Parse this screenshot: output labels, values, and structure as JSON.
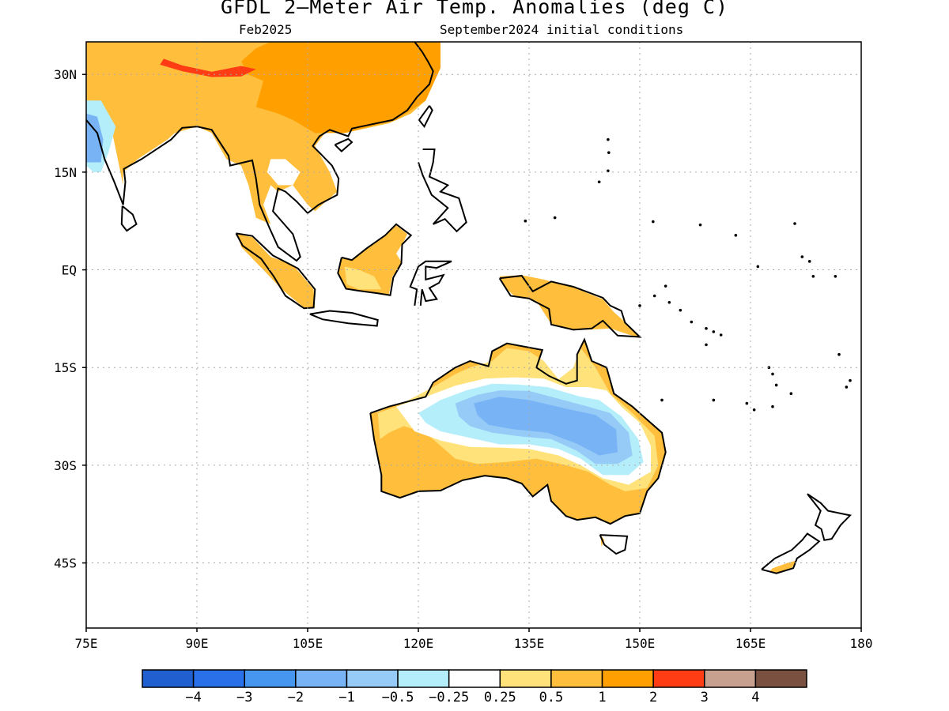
{
  "title": "GFDL 2—Meter Air Temp. Anomalies (deg C)",
  "valid_month": "Feb2025",
  "initial_conditions": "September2024 initial conditions",
  "map": {
    "lon_range": [
      75,
      180
    ],
    "lat_range": [
      -55,
      35
    ],
    "lon_ticks": [
      {
        "value": 75,
        "label": "75E"
      },
      {
        "value": 90,
        "label": "90E"
      },
      {
        "value": 105,
        "label": "105E"
      },
      {
        "value": 120,
        "label": "120E"
      },
      {
        "value": 135,
        "label": "135E"
      },
      {
        "value": 150,
        "label": "150E"
      },
      {
        "value": 165,
        "label": "165E"
      },
      {
        "value": 180,
        "label": "180"
      }
    ],
    "lat_ticks": [
      {
        "value": 30,
        "label": "30N"
      },
      {
        "value": 15,
        "label": "15N"
      },
      {
        "value": 0,
        "label": "EQ"
      },
      {
        "value": -15,
        "label": "15S"
      },
      {
        "value": -30,
        "label": "30S"
      },
      {
        "value": -45,
        "label": "45S"
      }
    ],
    "grid": true
  },
  "colorbar": {
    "colors": [
      "#1f5fd0",
      "#2a70e8",
      "#4696f0",
      "#78b4f5",
      "#96caf7",
      "#b4eefa",
      "#ffffff",
      "#ffe27a",
      "#ffbe3c",
      "#ffa000",
      "#ff3c14",
      "#c8a090",
      "#7a5040"
    ],
    "labels": [
      "−4",
      "−3",
      "−2",
      "−1",
      "−0.5",
      "−0.25",
      "0.25",
      "0.5",
      "1",
      "2",
      "3",
      "4"
    ]
  },
  "land_colors": {
    "ocean": "#ffffff",
    "pale_yellow": "#ffe27a",
    "light_orange": "#ffbe3c",
    "orange": "#ffa000",
    "red": "#ff3c14",
    "light_blue": "#b4eefa",
    "mid_blue": "#96caf7",
    "blue": "#78b4f5"
  }
}
